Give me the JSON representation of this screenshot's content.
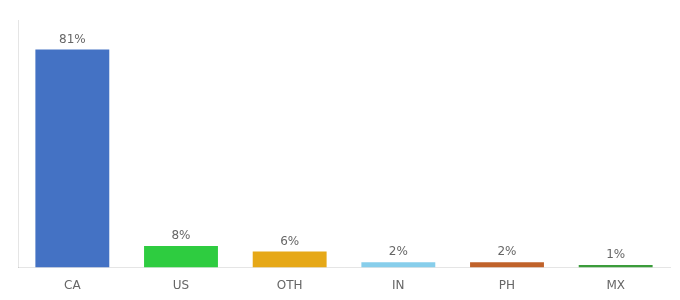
{
  "chart_data": {
    "type": "bar",
    "categories": [
      "CA",
      "US",
      "OTH",
      "IN",
      "PH",
      "MX"
    ],
    "values": [
      81,
      8,
      6,
      2,
      2,
      1
    ],
    "value_labels": [
      "81%",
      "8%",
      "6%",
      "2%",
      "2%",
      "1%"
    ],
    "data_labels": true,
    "colors": [
      "#4472c4",
      "#2ecc40",
      "#e6a817",
      "#87ceeb",
      "#c0622a",
      "#3a9c3a"
    ],
    "ylim": [
      0,
      92
    ],
    "grid": false,
    "tick_labels": "x"
  }
}
